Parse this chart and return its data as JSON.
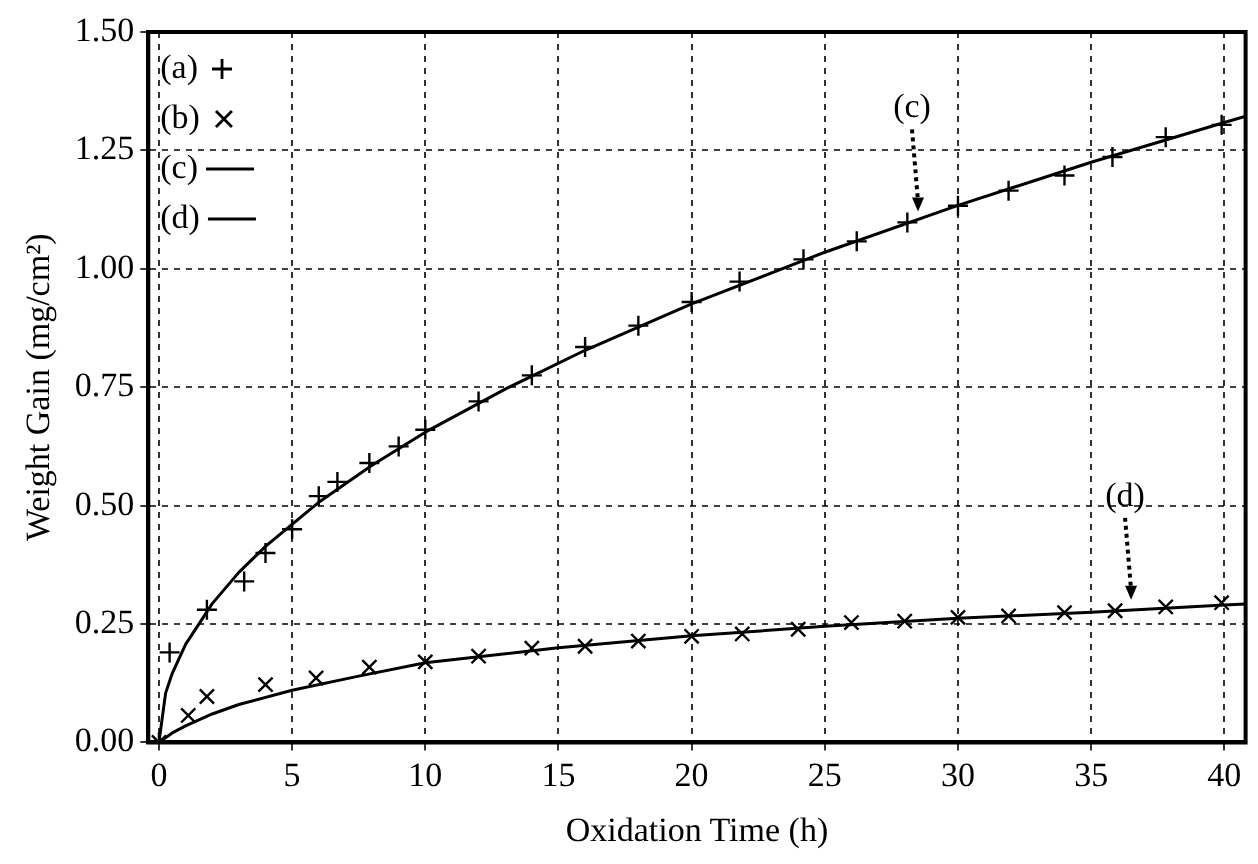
{
  "chart_data": {
    "type": "scatter",
    "xlabel": "Oxidation Time (h)",
    "ylabel": "Weight Gain (mg/cm²)",
    "xlim": [
      -0.4,
      40.8
    ],
    "ylim": [
      0,
      1.5
    ],
    "xticks": [
      0,
      5,
      10,
      15,
      20,
      25,
      30,
      35,
      40
    ],
    "yticks": [
      {
        "value": 0,
        "label": "0.00"
      },
      {
        "value": 0.25,
        "label": "0.25"
      },
      {
        "value": 0.5,
        "label": "0.50"
      },
      {
        "value": 0.75,
        "label": "0.75"
      },
      {
        "value": 1,
        "label": "1.00"
      },
      {
        "value": 1.25,
        "label": "1.25"
      },
      {
        "value": 1.5,
        "label": "1.50"
      }
    ],
    "grid": true,
    "legend": "top left",
    "series": [
      {
        "name": "(a)",
        "type": "scatter",
        "marker": "cross",
        "color": "#000000",
        "x": [
          0,
          0.4,
          1.8,
          3.2,
          4,
          5,
          6,
          6.7,
          7.9,
          9,
          10,
          12,
          14,
          16,
          18,
          20,
          21.8,
          24.2,
          26.2,
          28.1,
          30,
          31.9,
          34,
          35.8,
          37.8,
          39.9
        ],
        "values": [
          0,
          0.19,
          0.28,
          0.34,
          0.4,
          0.45,
          0.52,
          0.55,
          0.59,
          0.625,
          0.66,
          0.72,
          0.775,
          0.835,
          0.88,
          0.93,
          0.973,
          1.02,
          1.058,
          1.098,
          1.133,
          1.165,
          1.197,
          1.236,
          1.278,
          1.304
        ]
      },
      {
        "name": "(b)",
        "type": "scatter",
        "marker": "x",
        "color": "#000000",
        "x": [
          0,
          1.1,
          1.8,
          4,
          5.9,
          7.9,
          10,
          12,
          14,
          16,
          18,
          20,
          21.9,
          24,
          26,
          28,
          30,
          31.9,
          34,
          35.9,
          37.8,
          39.9
        ],
        "values": [
          0,
          0.057,
          0.097,
          0.122,
          0.136,
          0.159,
          0.17,
          0.182,
          0.199,
          0.203,
          0.214,
          0.224,
          0.229,
          0.239,
          0.253,
          0.256,
          0.264,
          0.267,
          0.274,
          0.278,
          0.286,
          0.295
        ]
      },
      {
        "name": "(c)",
        "type": "line",
        "marker": "none",
        "line_style": "solid",
        "color": "#000000",
        "x": [
          0,
          0.25,
          0.5,
          1,
          2,
          3,
          4,
          6,
          8,
          10,
          13,
          16,
          20,
          25,
          30,
          35,
          40,
          40.8
        ],
        "values": [
          0,
          0.104,
          0.146,
          0.207,
          0.293,
          0.359,
          0.414,
          0.507,
          0.585,
          0.655,
          0.746,
          0.828,
          0.926,
          1.035,
          1.134,
          1.225,
          1.309,
          1.322
        ]
      },
      {
        "name": "(d)",
        "type": "line",
        "marker": "none",
        "line_style": "solid",
        "color": "#000000",
        "x": [
          0,
          0.5,
          1,
          2,
          3,
          5,
          7.5,
          10,
          15,
          20,
          25,
          30,
          35,
          40,
          40.8
        ],
        "values": [
          0,
          0.02,
          0.035,
          0.06,
          0.08,
          0.11,
          0.14,
          0.168,
          0.2,
          0.225,
          0.245,
          0.262,
          0.275,
          0.29,
          0.292
        ]
      }
    ],
    "annotations": [
      {
        "text": "(c)",
        "x": 28.5,
        "y": 1.1
      },
      {
        "text": "(d)",
        "x": 36.5,
        "y": 0.28
      }
    ]
  }
}
